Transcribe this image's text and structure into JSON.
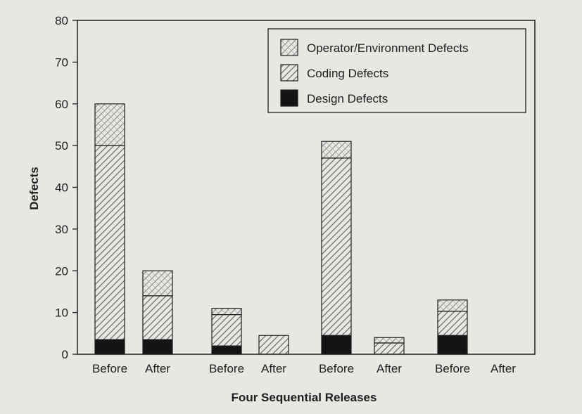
{
  "chart_data": {
    "type": "bar",
    "stacked": true,
    "xlabel": "Four Sequential Releases",
    "ylabel": "Defects",
    "ylim": [
      0,
      80
    ],
    "yticks": [
      0,
      10,
      20,
      30,
      40,
      50,
      60,
      70,
      80
    ],
    "groups": [
      {
        "bars": [
          "Before",
          "After"
        ]
      },
      {
        "bars": [
          "Before",
          "After"
        ]
      },
      {
        "bars": [
          "Before",
          "After"
        ]
      },
      {
        "bars": [
          "Before",
          "After"
        ]
      }
    ],
    "categories": [
      "Before",
      "After",
      "Before",
      "After",
      "Before",
      "After",
      "Before",
      "After"
    ],
    "series": [
      {
        "name": "Design Defects",
        "pattern": "solid",
        "values": [
          3.5,
          3.5,
          2,
          0,
          4.5,
          0,
          4.5,
          0
        ]
      },
      {
        "name": "Coding Defects",
        "pattern": "diagonal-hatch",
        "values": [
          46.5,
          10.5,
          7.5,
          4.5,
          42.5,
          2.7,
          5.8,
          0
        ]
      },
      {
        "name": "Operator/Environment Defects",
        "pattern": "cross-hatch",
        "values": [
          10,
          6,
          1.5,
          0,
          4,
          1.3,
          2.7,
          0
        ]
      }
    ],
    "legend": {
      "position": "top-right",
      "order": [
        "Operator/Environment Defects",
        "Coding Defects",
        "Design Defects"
      ]
    },
    "grid": false,
    "colors": {
      "background": "#e9e7e4",
      "ink": "#1e1e1e",
      "hatch": "#555555"
    }
  }
}
